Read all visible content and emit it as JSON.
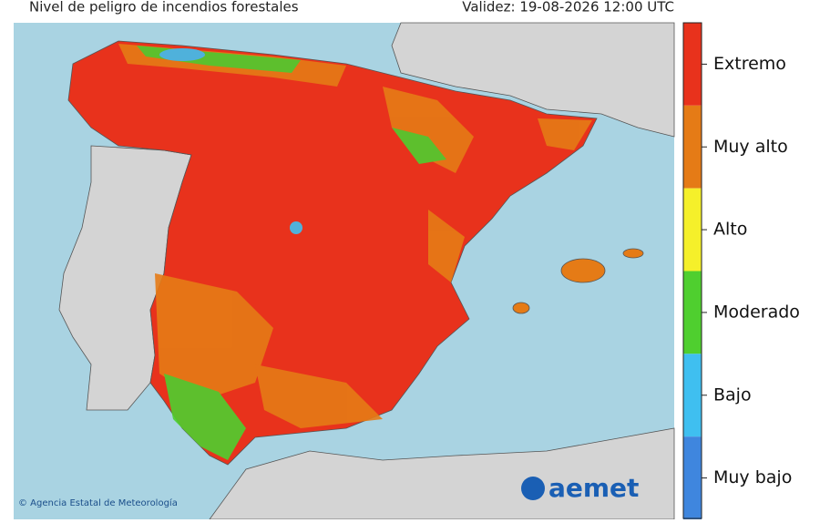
{
  "header": {
    "title": "Nivel de peligro de incendios forestales",
    "validity": "Validez: 19-08-2026 12:00 UTC"
  },
  "legend": {
    "levels": [
      {
        "label": "Extremo",
        "color": "#e8321c"
      },
      {
        "label": "Muy alto",
        "color": "#e57b16"
      },
      {
        "label": "Alto",
        "color": "#f5f02a"
      },
      {
        "label": "Moderado",
        "color": "#4fcf2f"
      },
      {
        "label": "Bajo",
        "color": "#3fbff0"
      },
      {
        "label": "Muy bajo",
        "color": "#3f86de"
      }
    ]
  },
  "footer": {
    "credit": "© Agencia Estatal de Meteorología",
    "logo": "aemet"
  }
}
